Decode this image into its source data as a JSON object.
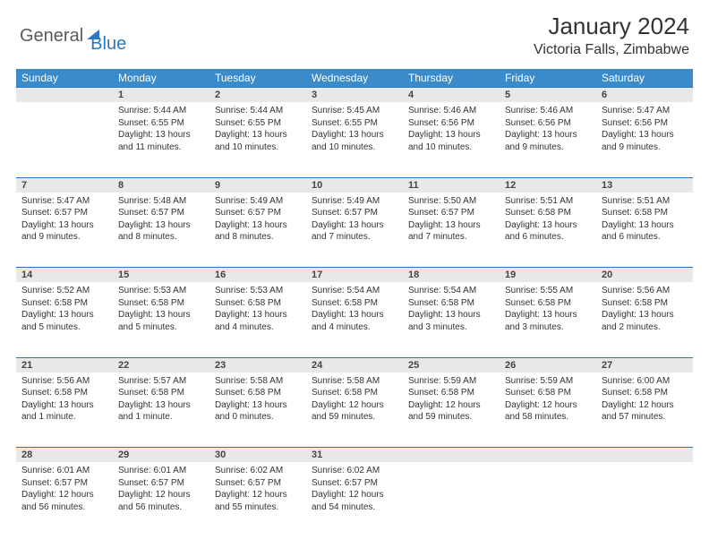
{
  "logo": {
    "part1": "General",
    "part2": "Blue"
  },
  "title": "January 2024",
  "location": "Victoria Falls, Zimbabwe",
  "weekdays": [
    "Sunday",
    "Monday",
    "Tuesday",
    "Wednesday",
    "Thursday",
    "Friday",
    "Saturday"
  ],
  "colors": {
    "header_bg": "#3b8bca",
    "header_text": "#ffffff",
    "daynum_bg": "#e8e8e8",
    "rule": "#2b77c0",
    "text": "#333333",
    "logo_gray": "#5a5a5a",
    "logo_blue": "#2b77c0",
    "page_bg": "#ffffff"
  },
  "fonts": {
    "title_size_pt": 20,
    "location_size_pt": 12,
    "weekday_size_pt": 9,
    "body_size_pt": 7.5
  },
  "first_weekday_index": 1,
  "days": [
    {
      "n": 1,
      "sunrise": "5:44 AM",
      "sunset": "6:55 PM",
      "daylight": "13 hours and 11 minutes."
    },
    {
      "n": 2,
      "sunrise": "5:44 AM",
      "sunset": "6:55 PM",
      "daylight": "13 hours and 10 minutes."
    },
    {
      "n": 3,
      "sunrise": "5:45 AM",
      "sunset": "6:55 PM",
      "daylight": "13 hours and 10 minutes."
    },
    {
      "n": 4,
      "sunrise": "5:46 AM",
      "sunset": "6:56 PM",
      "daylight": "13 hours and 10 minutes."
    },
    {
      "n": 5,
      "sunrise": "5:46 AM",
      "sunset": "6:56 PM",
      "daylight": "13 hours and 9 minutes."
    },
    {
      "n": 6,
      "sunrise": "5:47 AM",
      "sunset": "6:56 PM",
      "daylight": "13 hours and 9 minutes."
    },
    {
      "n": 7,
      "sunrise": "5:47 AM",
      "sunset": "6:57 PM",
      "daylight": "13 hours and 9 minutes."
    },
    {
      "n": 8,
      "sunrise": "5:48 AM",
      "sunset": "6:57 PM",
      "daylight": "13 hours and 8 minutes."
    },
    {
      "n": 9,
      "sunrise": "5:49 AM",
      "sunset": "6:57 PM",
      "daylight": "13 hours and 8 minutes."
    },
    {
      "n": 10,
      "sunrise": "5:49 AM",
      "sunset": "6:57 PM",
      "daylight": "13 hours and 7 minutes."
    },
    {
      "n": 11,
      "sunrise": "5:50 AM",
      "sunset": "6:57 PM",
      "daylight": "13 hours and 7 minutes."
    },
    {
      "n": 12,
      "sunrise": "5:51 AM",
      "sunset": "6:58 PM",
      "daylight": "13 hours and 6 minutes."
    },
    {
      "n": 13,
      "sunrise": "5:51 AM",
      "sunset": "6:58 PM",
      "daylight": "13 hours and 6 minutes."
    },
    {
      "n": 14,
      "sunrise": "5:52 AM",
      "sunset": "6:58 PM",
      "daylight": "13 hours and 5 minutes."
    },
    {
      "n": 15,
      "sunrise": "5:53 AM",
      "sunset": "6:58 PM",
      "daylight": "13 hours and 5 minutes."
    },
    {
      "n": 16,
      "sunrise": "5:53 AM",
      "sunset": "6:58 PM",
      "daylight": "13 hours and 4 minutes."
    },
    {
      "n": 17,
      "sunrise": "5:54 AM",
      "sunset": "6:58 PM",
      "daylight": "13 hours and 4 minutes."
    },
    {
      "n": 18,
      "sunrise": "5:54 AM",
      "sunset": "6:58 PM",
      "daylight": "13 hours and 3 minutes."
    },
    {
      "n": 19,
      "sunrise": "5:55 AM",
      "sunset": "6:58 PM",
      "daylight": "13 hours and 3 minutes."
    },
    {
      "n": 20,
      "sunrise": "5:56 AM",
      "sunset": "6:58 PM",
      "daylight": "13 hours and 2 minutes."
    },
    {
      "n": 21,
      "sunrise": "5:56 AM",
      "sunset": "6:58 PM",
      "daylight": "13 hours and 1 minute."
    },
    {
      "n": 22,
      "sunrise": "5:57 AM",
      "sunset": "6:58 PM",
      "daylight": "13 hours and 1 minute."
    },
    {
      "n": 23,
      "sunrise": "5:58 AM",
      "sunset": "6:58 PM",
      "daylight": "13 hours and 0 minutes."
    },
    {
      "n": 24,
      "sunrise": "5:58 AM",
      "sunset": "6:58 PM",
      "daylight": "12 hours and 59 minutes."
    },
    {
      "n": 25,
      "sunrise": "5:59 AM",
      "sunset": "6:58 PM",
      "daylight": "12 hours and 59 minutes."
    },
    {
      "n": 26,
      "sunrise": "5:59 AM",
      "sunset": "6:58 PM",
      "daylight": "12 hours and 58 minutes."
    },
    {
      "n": 27,
      "sunrise": "6:00 AM",
      "sunset": "6:58 PM",
      "daylight": "12 hours and 57 minutes."
    },
    {
      "n": 28,
      "sunrise": "6:01 AM",
      "sunset": "6:57 PM",
      "daylight": "12 hours and 56 minutes."
    },
    {
      "n": 29,
      "sunrise": "6:01 AM",
      "sunset": "6:57 PM",
      "daylight": "12 hours and 56 minutes."
    },
    {
      "n": 30,
      "sunrise": "6:02 AM",
      "sunset": "6:57 PM",
      "daylight": "12 hours and 55 minutes."
    },
    {
      "n": 31,
      "sunrise": "6:02 AM",
      "sunset": "6:57 PM",
      "daylight": "12 hours and 54 minutes."
    }
  ],
  "labels": {
    "sunrise": "Sunrise:",
    "sunset": "Sunset:",
    "daylight": "Daylight:"
  }
}
